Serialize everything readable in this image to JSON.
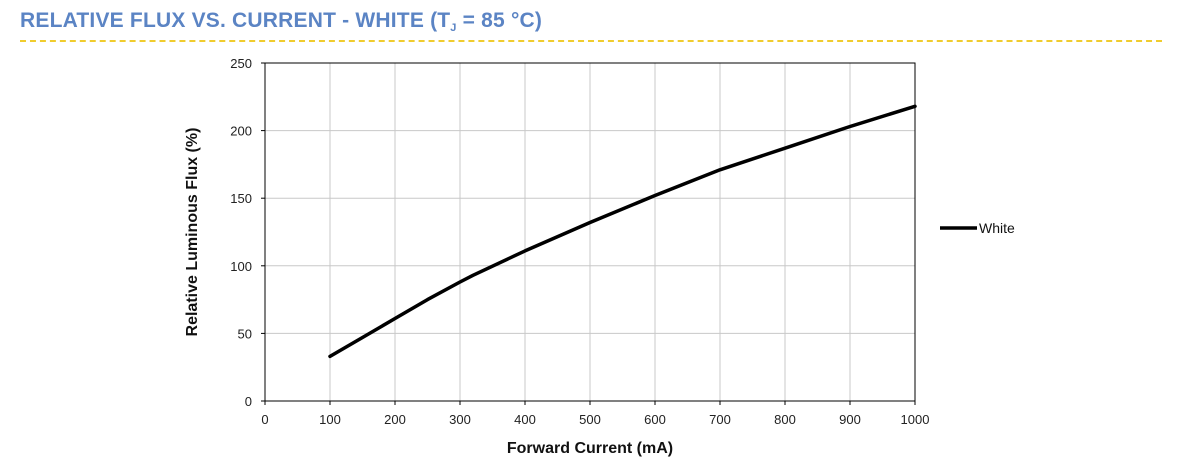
{
  "header": {
    "title_main": "RELATIVE FLUX VS. CURRENT - WHITE (T",
    "title_sub": "J",
    "title_tail": " = 85 °C)",
    "title_color": "#5b84c4",
    "rule_color": "#f0cc2e"
  },
  "chart_data": {
    "type": "line",
    "xlabel": "Forward Current (mA)",
    "ylabel": "Relative Luminous Flux (%)",
    "xlim": [
      0,
      1000
    ],
    "ylim": [
      0,
      250
    ],
    "xticks": [
      0,
      100,
      200,
      300,
      400,
      500,
      600,
      700,
      800,
      900,
      1000
    ],
    "yticks": [
      0,
      50,
      100,
      150,
      200,
      250
    ],
    "grid": true,
    "legend_position": "right",
    "series": [
      {
        "name": "White",
        "color": "#000000",
        "x": [
          100,
          150,
          200,
          250,
          300,
          320,
          400,
          500,
          600,
          700,
          800,
          900,
          1000
        ],
        "y": [
          33,
          47,
          61,
          75,
          88,
          93,
          111,
          132,
          152,
          171,
          187,
          203,
          218
        ]
      }
    ]
  }
}
